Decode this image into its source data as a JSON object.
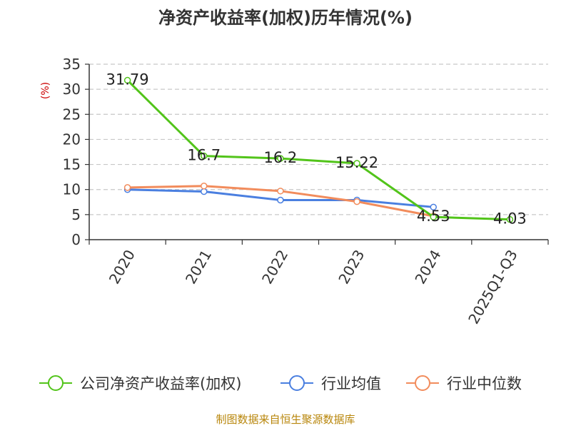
{
  "chart_data": {
    "type": "line",
    "title": "净资产收益率(加权)历年情况(%)",
    "ylabel": "(%)",
    "xlabel": "",
    "categories": [
      "2020",
      "2021",
      "2022",
      "2023",
      "2024",
      "2025Q1-Q3"
    ],
    "ylim": [
      0,
      35
    ],
    "yticks": [
      0,
      5,
      10,
      15,
      20,
      25,
      30,
      35
    ],
    "grid": true,
    "legend_position": "bottom",
    "series": [
      {
        "name": "公司净资产收益率(加权)",
        "color": "#52c41a",
        "values": [
          31.79,
          16.7,
          16.2,
          15.22,
          4.53,
          4.03
        ],
        "labels": [
          "31.79",
          "16.7",
          "16.2",
          "15.22",
          "4.53",
          "4.03"
        ]
      },
      {
        "name": "行业均值",
        "color": "#4a7fe0",
        "values": [
          10.0,
          9.6,
          7.9,
          7.9,
          6.5,
          null
        ]
      },
      {
        "name": "行业中位数",
        "color": "#f28c5c",
        "values": [
          10.4,
          10.7,
          9.7,
          7.6,
          4.7,
          null
        ]
      }
    ],
    "source": "制图数据来自恒生聚源数据库"
  }
}
